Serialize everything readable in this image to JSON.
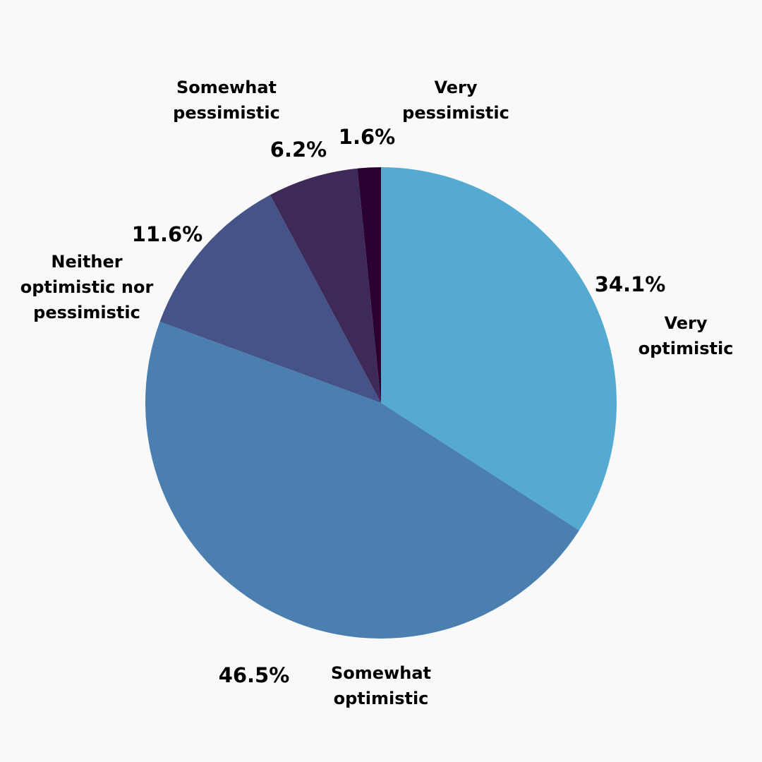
{
  "chart_data": {
    "type": "pie",
    "start_angle": "12 o'clock, clockwise",
    "categories": [
      "Very optimistic",
      "Somewhat optimistic",
      "Neither optimistic nor pessimistic",
      "Somewhat pessimistic",
      "Very pessimistic"
    ],
    "values": [
      34.1,
      46.5,
      11.6,
      6.2,
      1.6
    ],
    "value_labels": [
      "34.1%",
      "46.5%",
      "11.6%",
      "6.2%",
      "1.6%"
    ],
    "category_label_lines": [
      [
        "Very",
        "optimistic"
      ],
      [
        "Somewhat",
        "optimistic"
      ],
      [
        "Neither",
        "optimistic nor",
        "pessimistic"
      ],
      [
        "Somewhat",
        "pessimistic"
      ],
      [
        "Very",
        "pessimistic"
      ]
    ],
    "colors": [
      "#55aad2",
      "#4a7fb0",
      "#465388",
      "#3e2a58",
      "#2a0030"
    ],
    "legend": "none"
  }
}
